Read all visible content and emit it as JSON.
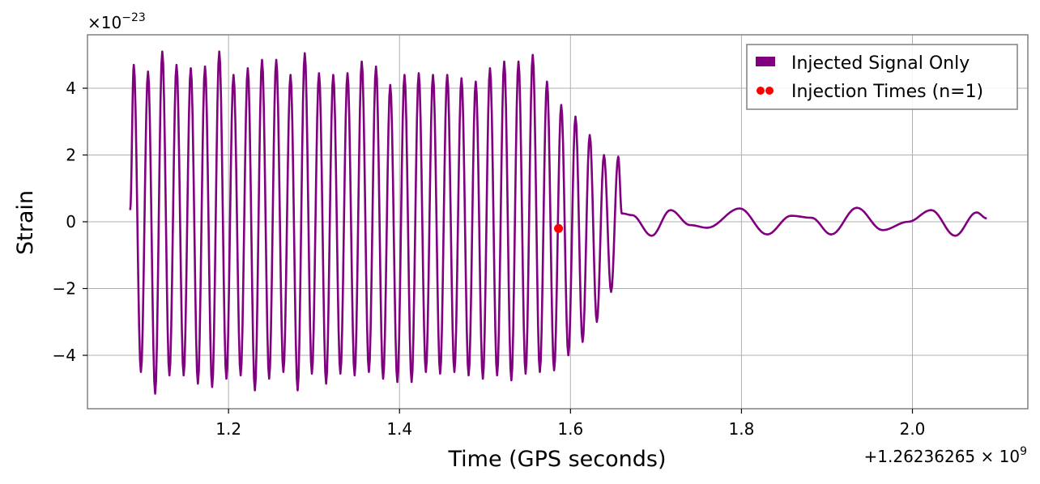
{
  "chart_data": {
    "type": "line",
    "xlabel": "Time (GPS seconds)",
    "ylabel": "Strain",
    "x_offset_label": "+1.26236265 × 10",
    "x_offset_exponent": "9",
    "y_multiplier_label": "×10",
    "y_multiplier_exponent": "−23",
    "xlim": [
      1.035,
      2.135
    ],
    "ylim": [
      -5.6,
      5.6
    ],
    "x_ticks": [
      1.2,
      1.4,
      1.6,
      1.8,
      2.0
    ],
    "x_tick_labels": [
      "1.2",
      "1.4",
      "1.6",
      "1.8",
      "2.0"
    ],
    "y_ticks": [
      -4,
      -2,
      0,
      2,
      4
    ],
    "y_tick_labels": [
      "−4",
      "−2",
      "0",
      "2",
      "4"
    ],
    "grid": true,
    "legend_position": "top-right",
    "series": [
      {
        "name": "Injected Signal Only",
        "kind": "line",
        "color": "#800080",
        "x_start": 1.085,
        "x_end": 2.087,
        "x_merger": 1.66,
        "inspiral": {
          "cycles": 37,
          "peaks": [
            4.7,
            -4.5,
            4.5,
            -5.15,
            5.1,
            -4.6,
            4.7,
            -4.6,
            4.6,
            -4.85,
            4.65,
            -4.95,
            5.1,
            -4.7,
            4.4,
            -4.6,
            4.6,
            -5.05,
            4.85,
            -4.7,
            4.85,
            -4.5,
            4.4,
            -5.05,
            5.05,
            -4.55,
            4.45,
            -4.85,
            4.4,
            -4.55,
            4.45,
            -4.6,
            4.8,
            -4.5,
            4.65,
            -4.7,
            4.1,
            -4.8,
            4.4,
            -4.8,
            4.45,
            -4.5,
            4.4,
            -4.55,
            4.4,
            -4.5,
            4.3,
            -4.6,
            4.2,
            -4.7,
            4.6,
            -4.6,
            4.8,
            -4.75,
            4.8,
            -4.55,
            5.0,
            -4.5,
            4.2,
            -4.45,
            3.5,
            -4.0,
            3.15,
            -3.6,
            2.6,
            -3.0,
            2.0,
            -2.1,
            1.95
          ]
        },
        "ringdown": {
          "points": [
            [
              1.66,
              0.25
            ],
            [
              1.672,
              0.2
            ],
            [
              1.695,
              -0.42
            ],
            [
              1.717,
              0.35
            ],
            [
              1.74,
              -0.1
            ],
            [
              1.76,
              -0.18
            ],
            [
              1.798,
              0.4
            ],
            [
              1.83,
              -0.38
            ],
            [
              1.858,
              0.18
            ],
            [
              1.882,
              0.12
            ],
            [
              1.905,
              -0.38
            ],
            [
              1.935,
              0.42
            ],
            [
              1.965,
              -0.25
            ],
            [
              1.995,
              0.0
            ],
            [
              2.022,
              0.35
            ],
            [
              2.05,
              -0.42
            ],
            [
              2.075,
              0.28
            ],
            [
              2.087,
              0.1
            ]
          ]
        }
      },
      {
        "name": "Injection Times (n=1)",
        "kind": "scatter",
        "color": "#ff0000",
        "points": [
          [
            1.586,
            -0.2
          ]
        ]
      }
    ]
  }
}
